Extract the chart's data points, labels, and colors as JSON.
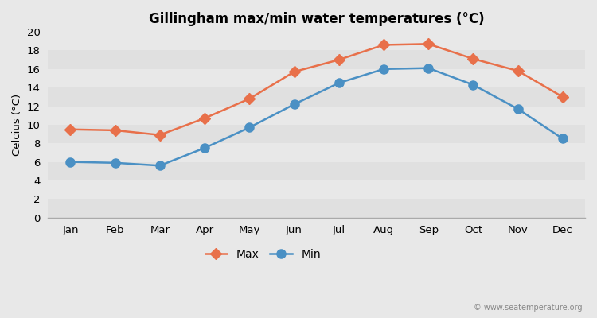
{
  "title": "Gillingham max/min water temperatures (°C)",
  "ylabel": "Celcius (°C)",
  "months": [
    "Jan",
    "Feb",
    "Mar",
    "Apr",
    "May",
    "Jun",
    "Jul",
    "Aug",
    "Sep",
    "Oct",
    "Nov",
    "Dec"
  ],
  "max_temps": [
    9.5,
    9.4,
    8.9,
    10.7,
    12.8,
    15.7,
    17.0,
    18.6,
    18.7,
    17.1,
    15.8,
    13.0
  ],
  "min_temps": [
    6.0,
    5.9,
    5.6,
    7.5,
    9.7,
    12.2,
    14.5,
    16.0,
    16.1,
    14.3,
    11.7,
    8.5
  ],
  "max_color": "#e8704a",
  "min_color": "#4a90c4",
  "outer_bg_color": "#e8e8e8",
  "plot_bg_color": "#e8e8e8",
  "band_colors": [
    "#e0e0e0",
    "#e8e8e8"
  ],
  "ylim": [
    0,
    20
  ],
  "yticks": [
    0,
    2,
    4,
    6,
    8,
    10,
    12,
    14,
    16,
    18,
    20
  ],
  "watermark": "© www.seatemperature.org",
  "max_marker": "D",
  "min_marker": "o",
  "max_marker_size": 7,
  "min_marker_size": 8,
  "line_width": 1.8
}
